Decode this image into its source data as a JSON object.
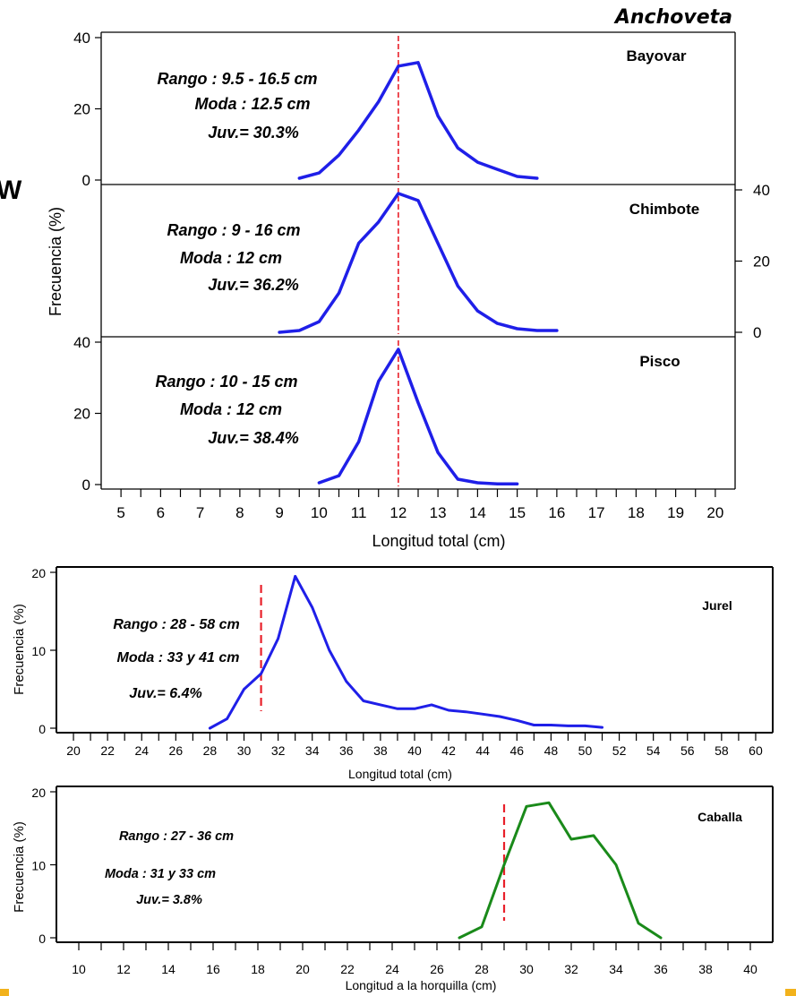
{
  "colors": {
    "anchoveta_line": "#1f1fe8",
    "jurel_line": "#1f1fe8",
    "caballa_line": "#1a8a1a",
    "juvenile_marker": "#e8202a",
    "axis": "#000000",
    "corner_accent": "#f2b21c"
  },
  "page": {
    "species_title": "Anchoveta",
    "edge_glyph": "W"
  },
  "chart_data": [
    {
      "type": "line",
      "panel": "Bayovar",
      "title": "Bayovar",
      "annotations": [
        "Rango : 9.5 - 16.5 cm",
        "Moda : 12.5 cm",
        "Juv.= 30.3%"
      ],
      "ylabel": "Frecuencia (%)",
      "xlim": [
        4.5,
        20.5
      ],
      "ylim": [
        0,
        40
      ],
      "yticks": [
        "0",
        "20",
        "40"
      ],
      "y_axis_side": "left",
      "juvenile_cutoff": 12,
      "x": [
        9.5,
        10,
        10.5,
        11,
        11.5,
        12,
        12.5,
        13,
        13.5,
        14,
        14.5,
        15,
        15.5
      ],
      "y": [
        0.5,
        2,
        7,
        14,
        22,
        32,
        33,
        18,
        9,
        5,
        3,
        1,
        0.5
      ]
    },
    {
      "type": "line",
      "panel": "Chimbote",
      "title": "Chimbote",
      "annotations": [
        "Rango : 9 - 16 cm",
        "Moda : 12 cm",
        "Juv.= 36.2%"
      ],
      "xlim": [
        4.5,
        20.5
      ],
      "ylim": [
        0,
        40
      ],
      "yticks": [
        "0",
        "20",
        "40"
      ],
      "y_axis_side": "right",
      "juvenile_cutoff": 12,
      "x": [
        9,
        9.5,
        10,
        10.5,
        11,
        11.5,
        12,
        12.5,
        13,
        13.5,
        14,
        14.5,
        15,
        15.5,
        16
      ],
      "y": [
        0,
        0.5,
        3,
        11,
        25,
        31,
        39,
        37,
        25,
        13,
        6,
        2.5,
        1,
        0.5,
        0.5
      ]
    },
    {
      "type": "line",
      "panel": "Pisco",
      "title": "Pisco",
      "annotations": [
        "Rango : 10 - 15 cm",
        "Moda : 12 cm",
        "Juv.= 38.4%"
      ],
      "xlabel": "Longitud total (cm)",
      "xlim": [
        4.5,
        20.5
      ],
      "ylim": [
        0,
        40
      ],
      "yticks": [
        "0",
        "20",
        "40"
      ],
      "y_axis_side": "left",
      "xticks": [
        "5",
        "6",
        "7",
        "8",
        "9",
        "10",
        "11",
        "12",
        "13",
        "14",
        "15",
        "16",
        "17",
        "18",
        "19",
        "20"
      ],
      "juvenile_cutoff": 12,
      "x": [
        10,
        10.5,
        11,
        11.5,
        12,
        12.5,
        13,
        13.5,
        14,
        14.5,
        15
      ],
      "y": [
        0.5,
        2.5,
        12,
        29,
        38,
        23,
        9,
        1.5,
        0.5,
        0.2,
        0.2
      ]
    },
    {
      "type": "line",
      "panel": "Jurel",
      "title": "Jurel",
      "annotations": [
        "Rango : 28 - 58 cm",
        "Moda : 33 y 41 cm",
        "Juv.= 6.4%"
      ],
      "xlabel": "Longitud total (cm)",
      "ylabel": "Frecuencia (%)",
      "xlim": [
        19,
        61
      ],
      "ylim": [
        0,
        20
      ],
      "yticks": [
        "0",
        "10",
        "20"
      ],
      "xticks": [
        "20",
        "22",
        "24",
        "26",
        "28",
        "30",
        "32",
        "34",
        "36",
        "38",
        "40",
        "42",
        "44",
        "46",
        "48",
        "50",
        "52",
        "54",
        "56",
        "58",
        "60"
      ],
      "juvenile_cutoff": 31,
      "x": [
        28,
        29,
        30,
        31,
        32,
        33,
        34,
        35,
        36,
        37,
        38,
        39,
        40,
        41,
        42,
        43,
        44,
        45,
        46,
        47,
        48,
        49,
        50,
        51
      ],
      "y": [
        0,
        1.2,
        5,
        7,
        11.5,
        19.5,
        15.5,
        10,
        6,
        3.5,
        3,
        2.5,
        2.5,
        3,
        2.3,
        2.1,
        1.8,
        1.5,
        1,
        0.4,
        0.4,
        0.3,
        0.3,
        0.1
      ]
    },
    {
      "type": "line",
      "panel": "Caballa",
      "title": "Caballa",
      "annotations": [
        "Rango : 27 - 36 cm",
        "Moda : 31 y 33 cm",
        "Juv.= 3.8%"
      ],
      "xlabel": "Longitud a la horquilla (cm)",
      "ylabel": "Frecuencia (%)",
      "xlim": [
        9,
        41
      ],
      "ylim": [
        0,
        20
      ],
      "yticks": [
        "0",
        "10",
        "20"
      ],
      "xticks": [
        "10",
        "12",
        "14",
        "16",
        "18",
        "20",
        "22",
        "24",
        "26",
        "28",
        "30",
        "32",
        "34",
        "36",
        "38",
        "40"
      ],
      "juvenile_cutoff": 29,
      "x": [
        27,
        28,
        29,
        30,
        31,
        32,
        33,
        34,
        35,
        36
      ],
      "y": [
        0,
        1.5,
        10,
        18,
        18.5,
        13.5,
        14,
        10,
        2,
        0
      ]
    }
  ]
}
